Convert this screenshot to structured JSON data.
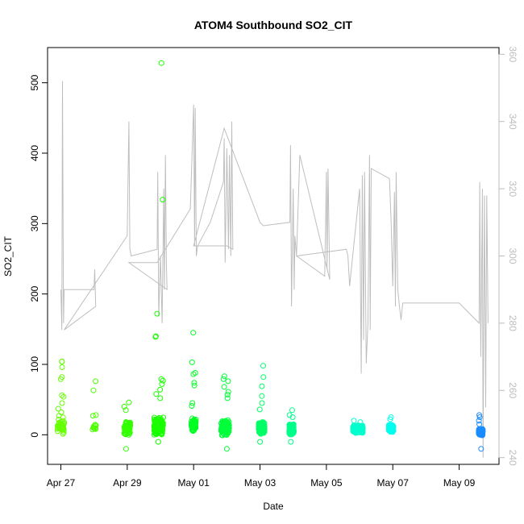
{
  "chart_data": {
    "type": "scatter",
    "title": "ATOM4 Southbound SO2_CIT",
    "xlabel": "Date",
    "ylabel": "SO2_CIT",
    "x_ticks": [
      "Apr 27",
      "Apr 29",
      "May 01",
      "May 03",
      "May 05",
      "May 07",
      "May 09"
    ],
    "y_ticks": [
      0,
      100,
      200,
      300,
      400,
      500
    ],
    "y2_ticks": [
      240,
      260,
      280,
      300,
      320,
      340,
      360
    ],
    "xlim": [
      -0.4,
      13.2
    ],
    "ylim": [
      -42,
      550
    ],
    "y2lim": [
      238,
      362
    ],
    "colors": {
      "secondary_line": "#bebebe",
      "right_axis": "#bdbdbd",
      "frame": "#000000"
    },
    "secondary_series": {
      "name": "",
      "path": [
        [
          0.0,
          290
        ],
        [
          0.03,
          278
        ],
        [
          0.05,
          352
        ],
        [
          0.08,
          280
        ],
        [
          0.1,
          290
        ],
        [
          1.0,
          290
        ],
        [
          1.02,
          296
        ],
        [
          1.05,
          285
        ],
        [
          0.1,
          278
        ],
        [
          2.0,
          306
        ],
        [
          2.05,
          340
        ],
        [
          2.08,
          302
        ],
        [
          2.12,
          300
        ],
        [
          2.9,
          302
        ],
        [
          2.92,
          325
        ],
        [
          2.95,
          282
        ],
        [
          3.0,
          300
        ],
        [
          3.05,
          280
        ],
        [
          3.1,
          320
        ],
        [
          3.12,
          290
        ],
        [
          3.15,
          330
        ],
        [
          3.18,
          298
        ],
        [
          3.2,
          290
        ],
        [
          2.05,
          298
        ],
        [
          2.9,
          298
        ],
        [
          3.9,
          314
        ],
        [
          4.0,
          345
        ],
        [
          4.03,
          303
        ],
        [
          4.05,
          344
        ],
        [
          4.08,
          300
        ],
        [
          4.12,
          303
        ],
        [
          4.5,
          310
        ],
        [
          4.9,
          322
        ],
        [
          4.92,
          335
        ],
        [
          4.95,
          298
        ],
        [
          5.0,
          332
        ],
        [
          5.05,
          302
        ],
        [
          5.08,
          330
        ],
        [
          5.12,
          300
        ],
        [
          5.15,
          340
        ],
        [
          5.18,
          302
        ],
        [
          5.0,
          303
        ],
        [
          4.0,
          303
        ],
        [
          4.92,
          338
        ],
        [
          6.0,
          310
        ],
        [
          6.1,
          309
        ],
        [
          6.9,
          310
        ],
        [
          6.92,
          333
        ],
        [
          6.95,
          285
        ],
        [
          7.0,
          320
        ],
        [
          7.03,
          290
        ],
        [
          7.05,
          306
        ],
        [
          7.1,
          300
        ],
        [
          7.95,
          294
        ],
        [
          8.0,
          325
        ],
        [
          8.02,
          296
        ],
        [
          8.05,
          326
        ],
        [
          8.1,
          293
        ],
        [
          7.2,
          330
        ],
        [
          7.1,
          300
        ],
        [
          8.6,
          302
        ],
        [
          8.65,
          300
        ],
        [
          8.7,
          291
        ],
        [
          8.72,
          293
        ],
        [
          9.0,
          320
        ],
        [
          9.05,
          265
        ],
        [
          9.08,
          324
        ],
        [
          9.12,
          275
        ],
        [
          9.15,
          325
        ],
        [
          9.2,
          268
        ],
        [
          9.25,
          280
        ],
        [
          9.3,
          330
        ],
        [
          9.32,
          278
        ],
        [
          9.35,
          326
        ],
        [
          9.9,
          323
        ],
        [
          9.95,
          310
        ],
        [
          10.0,
          291
        ],
        [
          10.05,
          319
        ],
        [
          10.08,
          285
        ],
        [
          10.1,
          325
        ],
        [
          10.15,
          290
        ],
        [
          10.2,
          285
        ],
        [
          10.25,
          281
        ],
        [
          10.3,
          286
        ],
        [
          12.0,
          286
        ],
        [
          12.6,
          280
        ],
        [
          12.62,
          322
        ],
        [
          12.65,
          270
        ],
        [
          12.7,
          320
        ],
        [
          12.72,
          240
        ],
        [
          12.76,
          318
        ],
        [
          12.8,
          255
        ],
        [
          12.83,
          318
        ],
        [
          12.87,
          280
        ]
      ]
    },
    "series": [
      {
        "name": "",
        "color": "#66ff00",
        "x_center": 0.0,
        "x_spread": 0.1,
        "n": 42,
        "y_base": 12,
        "y_spread": 16,
        "outliers": [
          104,
          96,
          82,
          79,
          56,
          54,
          45,
          37,
          32,
          27,
          104
        ]
      },
      {
        "name": "",
        "color": "#4cff00",
        "x_center": 1.0,
        "x_spread": 0.06,
        "n": 12,
        "y_base": 12,
        "y_spread": 6,
        "outliers": [
          76,
          63,
          28,
          27
        ]
      },
      {
        "name": "",
        "color": "#33ff00",
        "x_center": 2.0,
        "x_spread": 0.09,
        "n": 70,
        "y_base": 10,
        "y_spread": 12,
        "outliers": [
          46,
          40,
          35,
          -20
        ]
      },
      {
        "name": "",
        "color": "#1aff00",
        "x_center": 2.95,
        "x_spread": 0.14,
        "n": 150,
        "y_base": 12,
        "y_spread": 14,
        "outliers": [
          528,
          334,
          172,
          140,
          139,
          79,
          77,
          72,
          64,
          58,
          52,
          -10
        ]
      },
      {
        "name": "",
        "color": "#00ff22",
        "x_center": 4.0,
        "x_spread": 0.07,
        "n": 60,
        "y_base": 14,
        "y_spread": 10,
        "outliers": [
          145,
          103,
          88,
          86,
          74,
          70,
          45,
          41
        ]
      },
      {
        "name": "",
        "color": "#00ff3a",
        "x_center": 4.95,
        "x_spread": 0.12,
        "n": 140,
        "y_base": 10,
        "y_spread": 12,
        "outliers": [
          83,
          79,
          76,
          68,
          61,
          57,
          52,
          -20
        ]
      },
      {
        "name": "",
        "color": "#00ff66",
        "x_center": 6.05,
        "x_spread": 0.09,
        "n": 120,
        "y_base": 10,
        "y_spread": 9,
        "outliers": [
          98,
          82,
          69,
          55,
          45,
          36,
          -10
        ]
      },
      {
        "name": "",
        "color": "#00ff88",
        "x_center": 6.95,
        "x_spread": 0.07,
        "n": 120,
        "y_base": 8,
        "y_spread": 8,
        "outliers": [
          35,
          28,
          25,
          -10
        ]
      },
      {
        "name": "",
        "color": "#00ffcc",
        "x_center": 8.95,
        "x_spread": 0.15,
        "n": 220,
        "y_base": 8,
        "y_spread": 6,
        "outliers": [
          20,
          18
        ]
      },
      {
        "name": "",
        "color": "#00ffee",
        "x_center": 9.95,
        "x_spread": 0.07,
        "n": 160,
        "y_base": 9,
        "y_spread": 6,
        "outliers": [
          25,
          22
        ]
      },
      {
        "name": "",
        "color": "#1a8cff",
        "x_center": 12.65,
        "x_spread": 0.06,
        "n": 200,
        "y_base": 4,
        "y_spread": 5,
        "outliers": [
          28,
          25,
          20,
          15,
          -20
        ]
      }
    ]
  }
}
